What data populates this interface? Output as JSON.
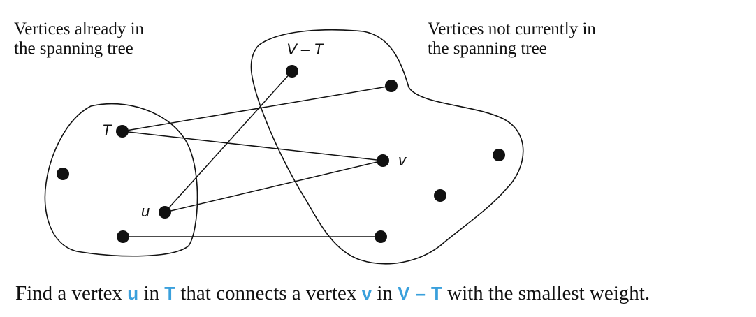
{
  "notes": {
    "left_line1": "Vertices already in",
    "left_line2": "the spanning tree",
    "right_line1": "Vertices not currently in",
    "right_line2": "the spanning tree"
  },
  "labels": {
    "set_vt": "V – T",
    "set_t": "T",
    "vertex_u": "u",
    "vertex_v": "v"
  },
  "caption": {
    "part1": "Find a vertex ",
    "u": "u",
    "part2": " in ",
    "t": "T",
    "part3": " that connects a vertex ",
    "v": "v",
    "part4": " in ",
    "vt_v": "V",
    "vt_minus": "–",
    "vt_t": "T",
    "part5": " with the smallest weight."
  },
  "colors": {
    "highlight": "#3aa0dc",
    "ink": "#111111"
  }
}
